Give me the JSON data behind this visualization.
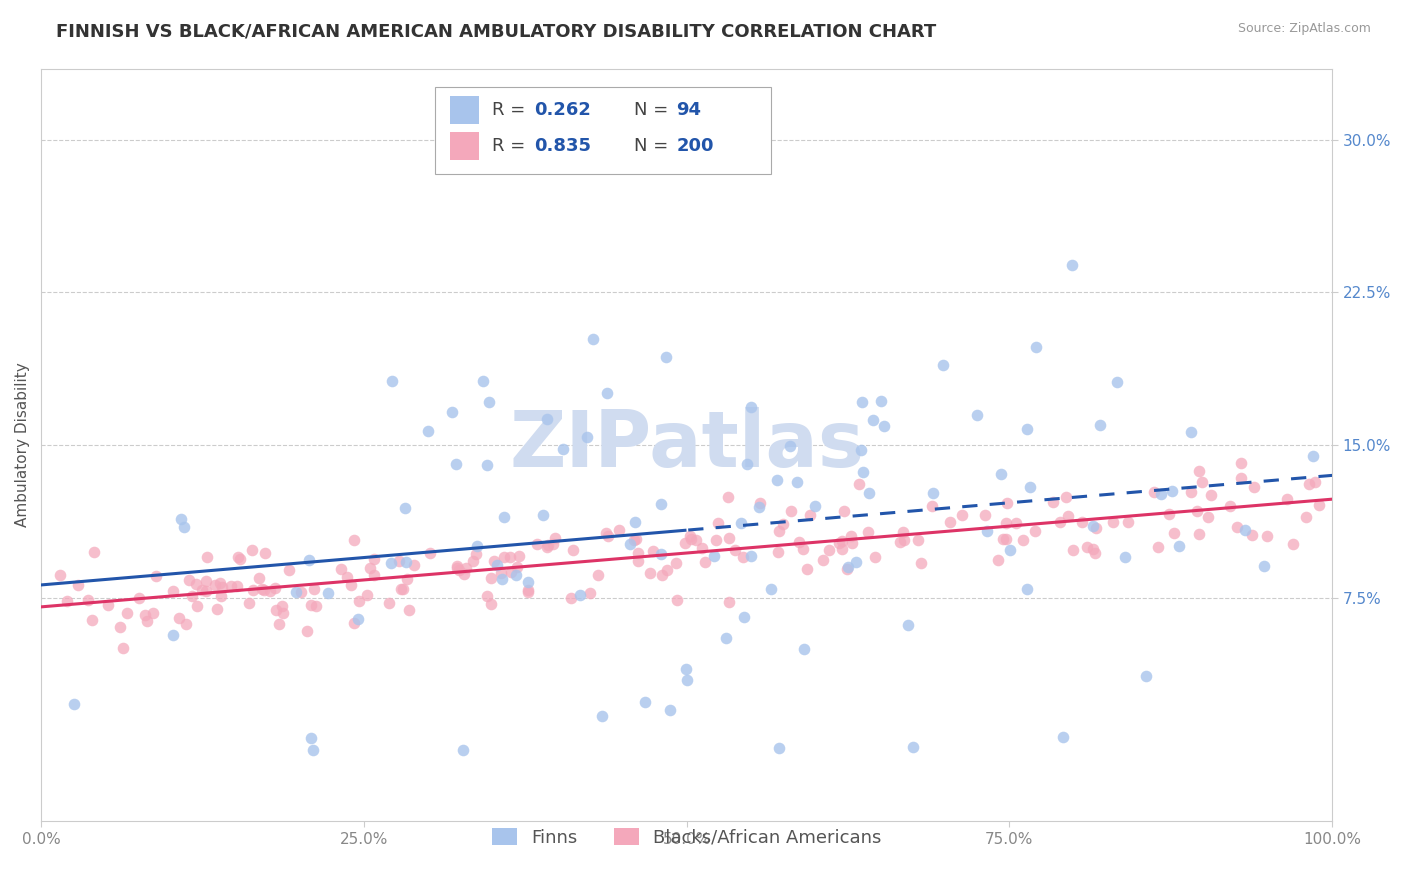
{
  "title": "FINNISH VS BLACK/AFRICAN AMERICAN AMBULATORY DISABILITY CORRELATION CHART",
  "source": "Source: ZipAtlas.com",
  "ylabel": "Ambulatory Disability",
  "xlim": [
    0.0,
    1.0
  ],
  "ylim": [
    -0.035,
    0.335
  ],
  "yticks": [
    0.075,
    0.15,
    0.225,
    0.3
  ],
  "ytick_labels": [
    "7.5%",
    "15.0%",
    "22.5%",
    "30.0%"
  ],
  "xticks": [
    0.0,
    0.25,
    0.5,
    0.75,
    1.0
  ],
  "xtick_labels": [
    "0.0%",
    "25.0%",
    "50.0%",
    "75.0%",
    "100.0%"
  ],
  "finnish_R": 0.262,
  "finnish_N": 94,
  "black_R": 0.835,
  "black_N": 200,
  "finnish_color": "#a8c4ec",
  "black_color": "#f4a8bb",
  "finnish_line_color": "#2255aa",
  "black_line_color": "#dd3366",
  "title_fontsize": 13,
  "axis_label_fontsize": 11,
  "tick_fontsize": 11,
  "legend_fontsize": 13,
  "watermark_color": "#d0dcf0",
  "background_color": "#ffffff",
  "grid_color": "#cccccc",
  "seed": 42
}
